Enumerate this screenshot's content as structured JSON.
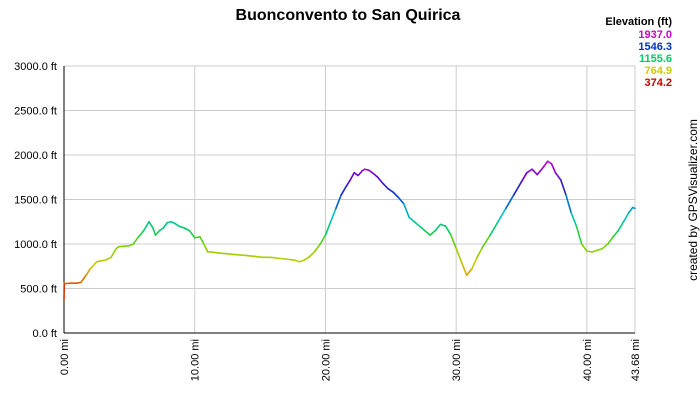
{
  "chart_data": {
    "type": "line",
    "title": "Buonconvento to San Quirica",
    "xlabel": "",
    "ylabel": "",
    "x_unit": "mi",
    "y_unit": "ft",
    "xlim": [
      0,
      43.68
    ],
    "ylim": [
      0,
      3000
    ],
    "grid": true,
    "y_ticks": [
      "0.0 ft",
      "500.0 ft",
      "1000.0 ft",
      "1500.0 ft",
      "2000.0 ft",
      "2500.0 ft",
      "3000.0 ft"
    ],
    "x_ticks": [
      "0.00 mi",
      "10.00 mi",
      "20.00 mi",
      "30.00 mi",
      "40.00 mi",
      "43.68 mi"
    ],
    "legend": {
      "title": "Elevation (ft)",
      "placement": "top-right",
      "entries": [
        {
          "label": "1937.0",
          "color": "#cc00cc"
        },
        {
          "label": "1546.3",
          "color": "#0033cc"
        },
        {
          "label": "1155.6",
          "color": "#00cc66"
        },
        {
          "label": "764.9",
          "color": "#cccc00"
        },
        {
          "label": "374.2",
          "color": "#cc0000"
        }
      ]
    },
    "color_scale": {
      "min": 374.2,
      "max": 1937.0
    },
    "series": [
      {
        "x": [
          0,
          0.02,
          0.1,
          0.5,
          1.0,
          1.3,
          1.7,
          2.0,
          2.5,
          2.8,
          3.2,
          3.6,
          4.0,
          4.2,
          4.6,
          5.0,
          5.3,
          5.7,
          6.1,
          6.5,
          6.8,
          7.0,
          7.3,
          7.6,
          7.9,
          8.2,
          8.5,
          8.8,
          9.2,
          9.6,
          10.0,
          10.4,
          10.7,
          11.0,
          11.3,
          11.8,
          12.5,
          13.2,
          14.0,
          14.6,
          15.2,
          15.8,
          16.4,
          17.0,
          17.6,
          18.0,
          18.4,
          18.8,
          19.2,
          19.6,
          20.0,
          20.4,
          20.8,
          21.2,
          21.6,
          21.9,
          22.2,
          22.5,
          22.8,
          23.0,
          23.3,
          23.6,
          24.0,
          24.4,
          24.8,
          25.2,
          25.6,
          26.0,
          26.4,
          26.8,
          27.2,
          27.6,
          28.0,
          28.4,
          28.8,
          29.2,
          29.6,
          30.0,
          30.4,
          30.8,
          31.2,
          31.6,
          32.0,
          32.6,
          33.2,
          33.8,
          34.4,
          35.0,
          35.4,
          35.8,
          36.2,
          36.6,
          37.0,
          37.3,
          37.6,
          38.0,
          38.4,
          38.8,
          39.2,
          39.6,
          40.0,
          40.4,
          40.8,
          41.2,
          41.6,
          42.0,
          42.4,
          42.8,
          43.2,
          43.5,
          43.68
        ],
        "y": [
          374,
          560,
          555,
          560,
          560,
          570,
          650,
          720,
          800,
          810,
          820,
          850,
          950,
          970,
          975,
          980,
          1000,
          1080,
          1150,
          1250,
          1180,
          1100,
          1150,
          1180,
          1240,
          1250,
          1230,
          1200,
          1180,
          1150,
          1070,
          1080,
          1000,
          910,
          910,
          900,
          890,
          880,
          870,
          860,
          850,
          850,
          840,
          830,
          820,
          800,
          820,
          860,
          920,
          1000,
          1100,
          1250,
          1400,
          1550,
          1650,
          1720,
          1800,
          1770,
          1820,
          1840,
          1830,
          1800,
          1750,
          1680,
          1620,
          1580,
          1520,
          1450,
          1300,
          1250,
          1200,
          1150,
          1100,
          1150,
          1220,
          1200,
          1100,
          950,
          800,
          650,
          720,
          850,
          960,
          1100,
          1250,
          1400,
          1550,
          1700,
          1800,
          1840,
          1780,
          1850,
          1930,
          1900,
          1800,
          1720,
          1550,
          1350,
          1200,
          1000,
          920,
          910,
          930,
          950,
          1000,
          1080,
          1150,
          1250,
          1350,
          1410,
          1400
        ]
      }
    ],
    "credit": "created by GPSVisualizer.com"
  }
}
